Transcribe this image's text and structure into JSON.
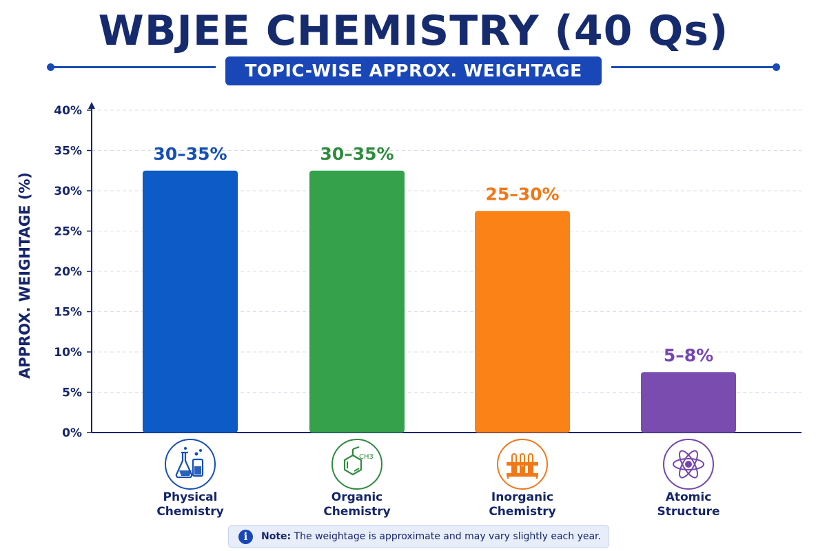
{
  "header": {
    "title": "WBJEE CHEMISTRY (40 Qs)",
    "subtitle": "TOPIC-WISE APPROX. WEIGHTAGE"
  },
  "chart_data": {
    "type": "bar",
    "title": "WBJEE CHEMISTRY (40 Qs)",
    "subtitle": "TOPIC-WISE APPROX. WEIGHTAGE",
    "ylabel": "APPROX. WEIGHTAGE (%)",
    "xlabel": "",
    "ylim": [
      0,
      40
    ],
    "yticks": [
      "0%",
      "5%",
      "10%",
      "15%",
      "20%",
      "25%",
      "30%",
      "35%",
      "40%"
    ],
    "grid": true,
    "categories": [
      "Physical\nChemistry",
      "Organic\nChemistry",
      "Inorganic\nChemistry",
      "Atomic\nStructure"
    ],
    "category_lines": [
      [
        "Physical",
        "Chemistry"
      ],
      [
        "Organic",
        "Chemistry"
      ],
      [
        "Inorganic",
        "Chemistry"
      ],
      [
        "Atomic",
        "Structure"
      ]
    ],
    "values": [
      32.5,
      32.5,
      27.5,
      7.5
    ],
    "data_labels": [
      "30–35%",
      "30–35%",
      "25–30%",
      "5–8%"
    ],
    "colors": [
      "#0d5bc6",
      "#35a24b",
      "#fb8216",
      "#7b4cb0"
    ],
    "label_colors": [
      "#1450b4",
      "#2e8b3e",
      "#f07818",
      "#7446ad"
    ],
    "icons": [
      "lab-flask-icon",
      "toluene-molecule-icon",
      "test-tube-rack-icon",
      "atom-icon"
    ],
    "icon_labels": [
      "",
      "CH3",
      "",
      ""
    ]
  },
  "note": {
    "prefix": "Note:",
    "text": " The weightage is approximate and may vary slightly each year."
  }
}
